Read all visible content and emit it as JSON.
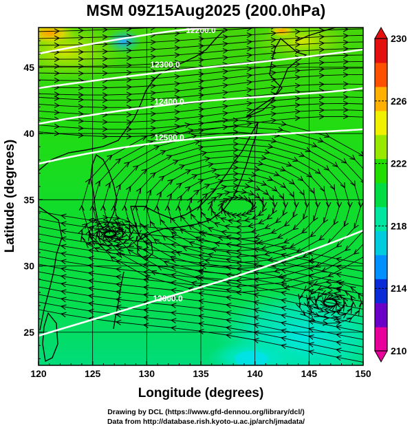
{
  "title": "MSM 09Z15Aug2025 (200.0hPa)",
  "x_axis": {
    "label": "Longitude (degrees)",
    "range": [
      120,
      150
    ],
    "ticks": [
      "120",
      "125",
      "130",
      "135",
      "140",
      "145",
      "150"
    ]
  },
  "y_axis": {
    "label": "Latitude  (degrees)",
    "range": [
      22.5,
      48
    ],
    "ticks": [
      "25",
      "30",
      "35",
      "40",
      "45"
    ]
  },
  "colorbar": {
    "range": [
      210,
      230
    ],
    "tick_labels": [
      "230",
      "226",
      "222",
      "218",
      "214",
      "210"
    ],
    "colors": [
      "#e8009a",
      "#6a00c8",
      "#0b2bd8",
      "#0090ff",
      "#00ccdd",
      "#00e6a0",
      "#00dd44",
      "#22dd00",
      "#99e800",
      "#f0f000",
      "#ffb000",
      "#ff5000",
      "#e41010"
    ]
  },
  "contours": {
    "labels": [
      "12200.0",
      "12300.0",
      "12400.0",
      "12500.0",
      "12600.0"
    ]
  },
  "credits": {
    "line1": "Drawing by DCL (https://www.gfd-dennou.org/library/dcl/)",
    "line2": "Data from http://database.rish.kyoto-u.ac.jp/arch/jmadata/"
  }
}
